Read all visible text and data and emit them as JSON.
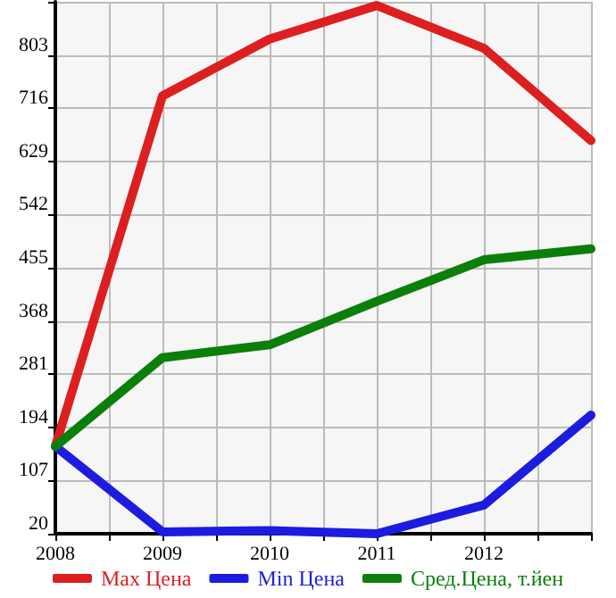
{
  "chart_data": {
    "type": "line",
    "x": [
      2008,
      2009,
      2010,
      2011,
      2012,
      2013
    ],
    "xlim": [
      2008,
      2013
    ],
    "xticks": [
      2008,
      {
        "value": 2008.5,
        "label": null
      },
      2009,
      {
        "value": 2009.5,
        "label": null
      },
      2010,
      {
        "value": 2010.5,
        "label": null
      },
      2011,
      {
        "value": 2011.5,
        "label": null
      },
      2012,
      {
        "value": 2012.5,
        "label": null
      },
      {
        "value": 2013,
        "label": null
      }
    ],
    "ylim": [
      20,
      890
    ],
    "yticks": [
      20,
      107,
      194,
      281,
      368,
      455,
      542,
      629,
      716,
      803,
      {
        "value": 890,
        "label": null
      }
    ],
    "series": [
      {
        "name": "Max Цена",
        "color": "#dd1f1f",
        "values": [
          163,
          736,
          829,
          884,
          814,
          663
        ]
      },
      {
        "name": "Min Цена",
        "color": "#1c1ce0",
        "values": [
          163,
          23,
          25,
          20,
          67,
          214
        ]
      },
      {
        "name": "Сред.Цена, т.йен",
        "color": "#0a7f0a",
        "values": [
          163,
          308,
          329,
          400,
          468,
          486
        ]
      }
    ],
    "grid": true,
    "legend": "bottom",
    "marker": "none",
    "line_style": "solid"
  }
}
